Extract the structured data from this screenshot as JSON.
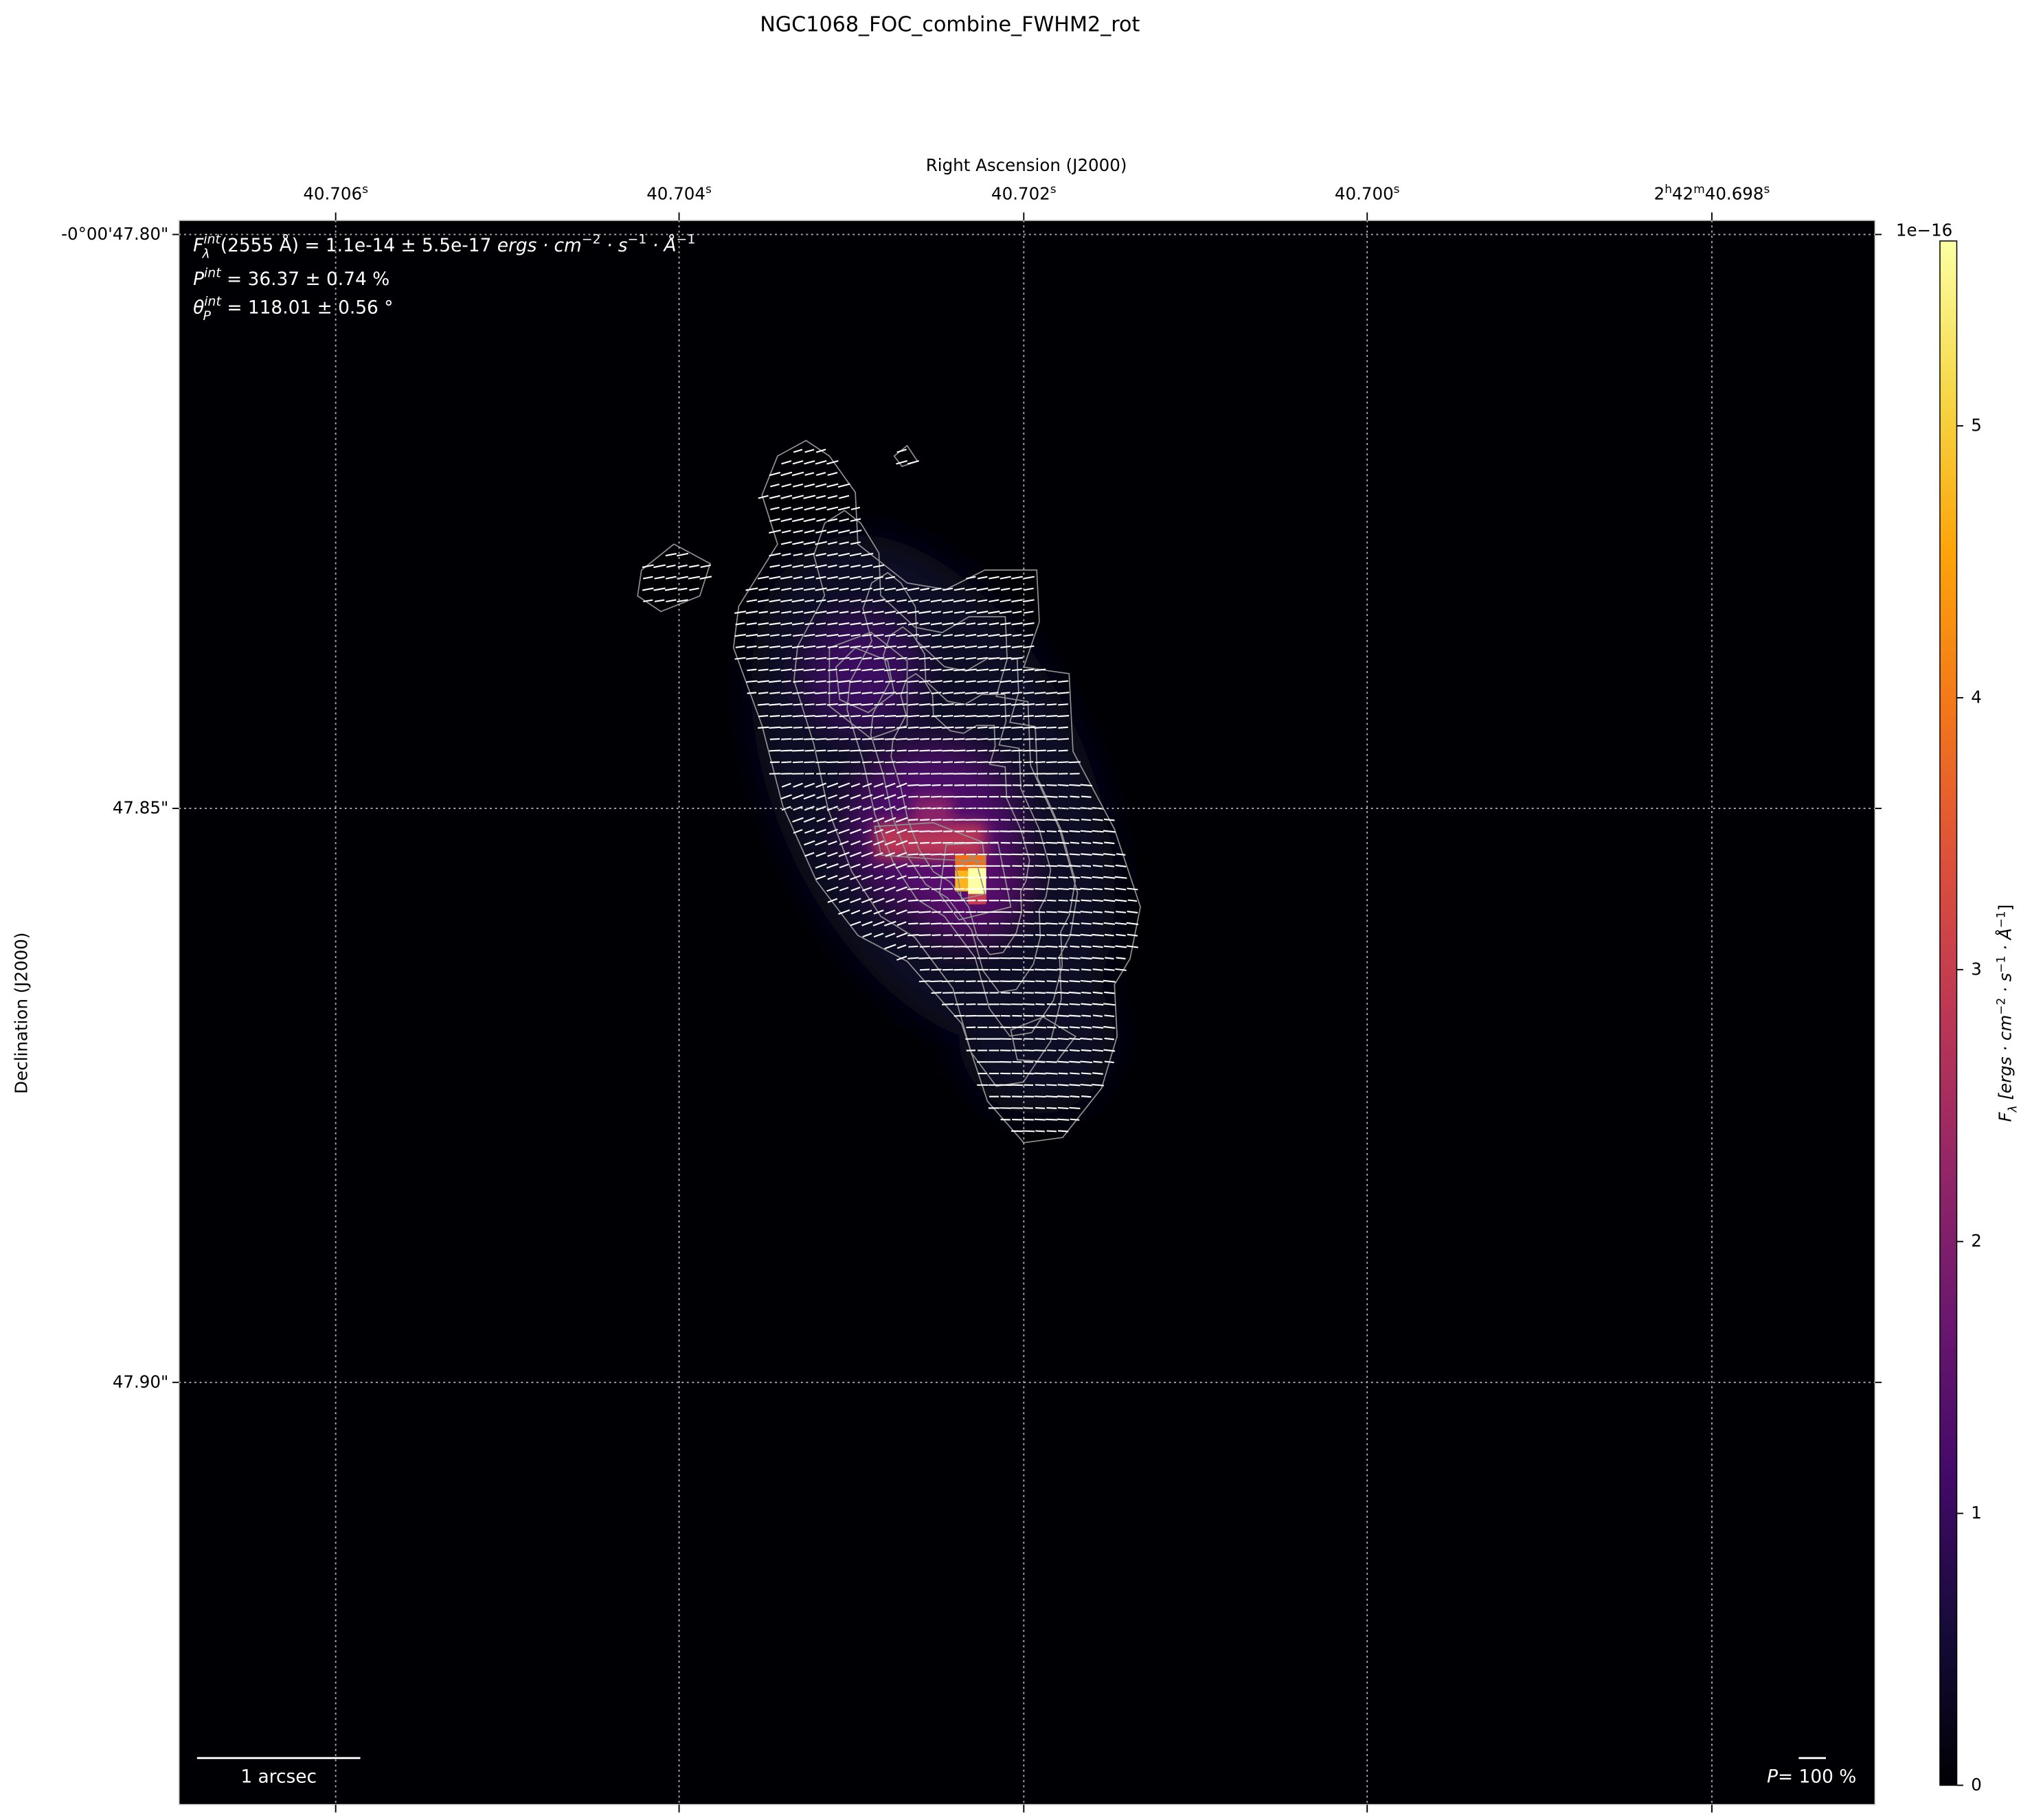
{
  "chart_data": {
    "type": "heatmap",
    "title": "NGC1068_FOC_combine_FWHM2_rot",
    "xlabel": "Right Ascension (J2000)",
    "ylabel": "Declination (J2000)",
    "x_tick_labels": [
      {
        "main": "40.706",
        "sup": "s"
      },
      {
        "main": "40.704",
        "sup": "s"
      },
      {
        "main": "40.702",
        "sup": "s"
      },
      {
        "main": "40.700",
        "sup": "s"
      },
      {
        "pre": "2",
        "pre_sup": "h",
        "mid": "42",
        "mid_sup": "m",
        "main": "40.698",
        "sup": "s"
      }
    ],
    "y_tick_labels": [
      "-0°00'47.80\"",
      "47.85\"",
      "47.90\""
    ],
    "colormap": "inferno",
    "colorbar": {
      "label_symbol": "F",
      "label_sub": "λ",
      "label_rest": " [ergs · cm",
      "label_parts": [
        "−2",
        " · s",
        "−1",
        " · Å",
        "−1",
        "]"
      ],
      "offset_text": "1e−16",
      "ticks": [
        "0",
        "1",
        "2",
        "3",
        "4",
        "5"
      ],
      "range": [
        0,
        5.68
      ]
    },
    "annotations": {
      "flux": {
        "sym": "F",
        "sup": "int",
        "sub": "λ",
        "text": "(2555 Å) = 1.1e-14 ± 5.5e-17 ",
        "unit": "ergs · cm",
        "e1": "−2",
        "u2": " · s",
        "e2": "−1",
        "u3": " · Å",
        "e3": "−1"
      },
      "pol": {
        "sym": "P",
        "sup": "int",
        "text": " = 36.37 ± 0.74 %"
      },
      "angle": {
        "sym": "θ",
        "sup": "int",
        "sub": "P",
        "text": " = 118.01 ± 0.56 °"
      }
    },
    "scale_bar_label": "1 arcsec",
    "pol_key": {
      "sym": "P",
      "text": "= 100 %"
    },
    "overlays": [
      "flux contours",
      "polarization vectors"
    ]
  }
}
